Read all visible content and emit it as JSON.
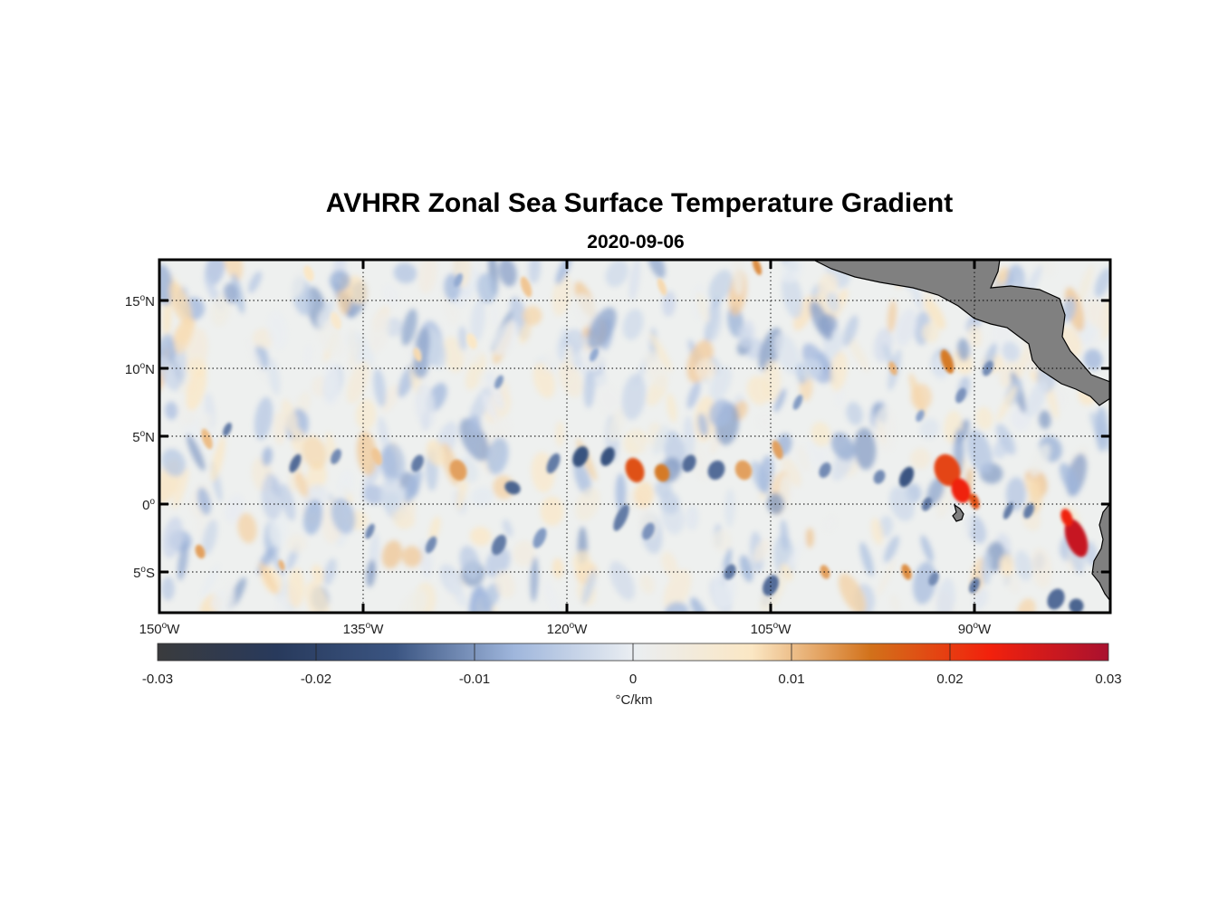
{
  "title": "AVHRR Zonal Sea Surface Temperature Gradient",
  "subtitle": "2020-09-06",
  "colorbar": {
    "label": "°C/km",
    "ticks": [
      "-0.03",
      "-0.02",
      "-0.01",
      "0",
      "0.01",
      "0.02",
      "0.03"
    ],
    "range": [
      -0.03,
      0.03
    ],
    "stops": [
      "#3a3b3d",
      "#283a5c",
      "#3b5582",
      "#9fb6dc",
      "#eaeef2",
      "#fbe7c4",
      "#d2711a",
      "#f2210c",
      "#a9112f"
    ]
  },
  "map": {
    "lon_range": [
      -150,
      -80
    ],
    "lat_range": [
      -8,
      18
    ],
    "lon_ticks": [
      {
        "value": -150,
        "num": "150",
        "hemi": "W"
      },
      {
        "value": -135,
        "num": "135",
        "hemi": "W"
      },
      {
        "value": -120,
        "num": "120",
        "hemi": "W"
      },
      {
        "value": -105,
        "num": "105",
        "hemi": "W"
      },
      {
        "value": -90,
        "num": "90",
        "hemi": "W"
      }
    ],
    "lat_ticks": [
      {
        "value": 15,
        "num": "15",
        "hemi": "N"
      },
      {
        "value": 10,
        "num": "10",
        "hemi": "N"
      },
      {
        "value": 5,
        "num": "5",
        "hemi": "N"
      },
      {
        "value": 0,
        "num": "0",
        "hemi": ""
      },
      {
        "value": -5,
        "num": "5",
        "hemi": "S"
      }
    ],
    "land_color": "#808080",
    "grid": "dotted"
  }
}
